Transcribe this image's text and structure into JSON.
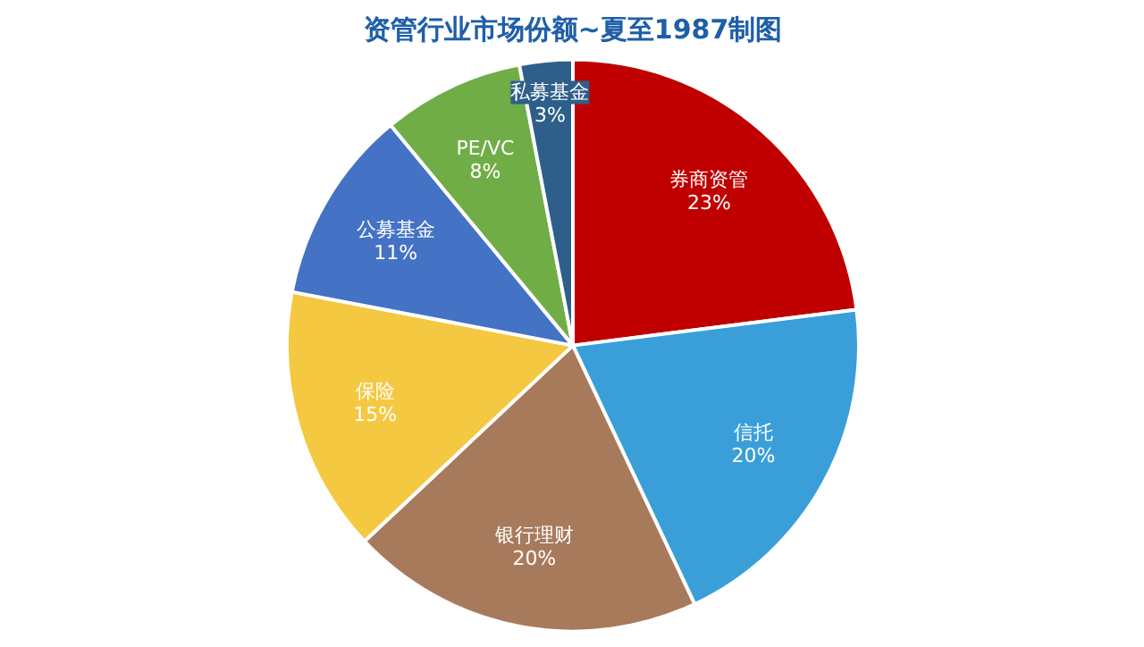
{
  "chart_data": {
    "type": "pie",
    "title": "资管行业市场份额~夏至1987制图",
    "categories": [
      "券商资管",
      "信托",
      "银行理财",
      "保险",
      "公募基金",
      "PE/VC",
      "私募基金"
    ],
    "values": [
      23,
      20,
      20,
      15,
      11,
      8,
      3
    ],
    "colors": [
      "#c00000",
      "#3a9fd8",
      "#a87a5c",
      "#f5c842",
      "#4472c4",
      "#70ad47",
      "#2e5f8a"
    ],
    "value_labels": [
      "23%",
      "20%",
      "20%",
      "15%",
      "11%",
      "8%",
      "3%"
    ]
  }
}
